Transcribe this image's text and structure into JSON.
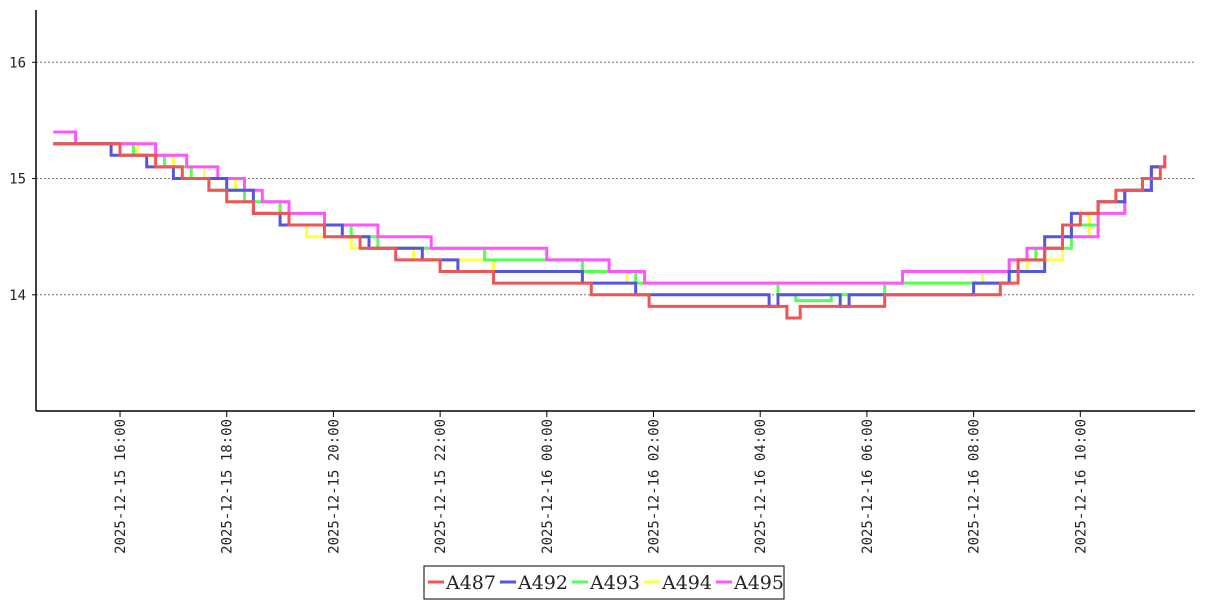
{
  "chart_data": {
    "type": "line",
    "title": "",
    "xlabel": "",
    "ylabel": "",
    "ylim": [
      13,
      16.45
    ],
    "xlim": [
      "2025-12-15 14:30",
      "2025-12-16 12:00"
    ],
    "yticks": [
      14,
      15,
      16
    ],
    "xticks": [
      "2025-12-15 16:00",
      "2025-12-15 18:00",
      "2025-12-15 20:00",
      "2025-12-15 22:00",
      "2025-12-16 00:00",
      "2025-12-16 02:00",
      "2025-12-16 04:00",
      "2025-12-16 06:00",
      "2025-12-16 08:00",
      "2025-12-16 10:00"
    ],
    "grid": "horizontal dotted",
    "legend": "bottom-center",
    "series": [
      {
        "name": "A494",
        "color": "#ffff44",
        "points": [
          [
            "2025-12-15 14:45",
            15.3
          ],
          [
            "2025-12-15 16:20",
            15.2
          ],
          [
            "2025-12-15 17:00",
            15.1
          ],
          [
            "2025-12-15 17:35",
            15.0
          ],
          [
            "2025-12-15 18:10",
            14.9
          ],
          [
            "2025-12-15 18:30",
            14.8
          ],
          [
            "2025-12-15 19:00",
            14.6
          ],
          [
            "2025-12-15 19:30",
            14.5
          ],
          [
            "2025-12-15 20:20",
            14.4
          ],
          [
            "2025-12-15 20:45",
            14.4
          ],
          [
            "2025-12-15 21:30",
            14.3
          ],
          [
            "2025-12-15 23:00",
            14.2
          ],
          [
            "2025-12-16 00:40",
            14.2
          ],
          [
            "2025-12-16 01:30",
            14.1
          ],
          [
            "2025-12-16 03:00",
            14.1
          ],
          [
            "2025-12-16 05:00",
            14.1
          ],
          [
            "2025-12-16 06:30",
            14.1
          ],
          [
            "2025-12-16 08:10",
            14.2
          ],
          [
            "2025-12-16 09:00",
            14.3
          ],
          [
            "2025-12-16 09:40",
            14.5
          ],
          [
            "2025-12-16 10:10",
            14.7
          ],
          [
            "2025-12-16 10:50",
            14.9
          ],
          [
            "2025-12-16 11:20",
            15.1
          ],
          [
            "2025-12-16 11:35",
            15.15
          ]
        ]
      },
      {
        "name": "A493",
        "color": "#55ff55",
        "points": [
          [
            "2025-12-15 14:45",
            15.3
          ],
          [
            "2025-12-15 16:15",
            15.2
          ],
          [
            "2025-12-15 16:50",
            15.1
          ],
          [
            "2025-12-15 17:20",
            15.0
          ],
          [
            "2025-12-15 17:40",
            14.9
          ],
          [
            "2025-12-15 18:20",
            14.8
          ],
          [
            "2025-12-15 19:00",
            14.7
          ],
          [
            "2025-12-15 19:50",
            14.6
          ],
          [
            "2025-12-15 20:20",
            14.5
          ],
          [
            "2025-12-15 20:50",
            14.4
          ],
          [
            "2025-12-15 21:40",
            14.4
          ],
          [
            "2025-12-15 22:50",
            14.3
          ],
          [
            "2025-12-16 00:40",
            14.2
          ],
          [
            "2025-12-16 01:40",
            14.1
          ],
          [
            "2025-12-16 04:20",
            14.0
          ],
          [
            "2025-12-16 04:40",
            13.95
          ],
          [
            "2025-12-16 05:20",
            14.0
          ],
          [
            "2025-12-16 06:20",
            14.1
          ],
          [
            "2025-12-16 08:00",
            14.1
          ],
          [
            "2025-12-16 08:40",
            14.3
          ],
          [
            "2025-12-16 09:10",
            14.4
          ],
          [
            "2025-12-16 09:50",
            14.6
          ],
          [
            "2025-12-16 10:20",
            14.8
          ],
          [
            "2025-12-16 10:50",
            14.9
          ],
          [
            "2025-12-16 11:20",
            15.1
          ],
          [
            "2025-12-16 11:35",
            15.1
          ]
        ]
      },
      {
        "name": "A495",
        "color": "#ff55ff",
        "points": [
          [
            "2025-12-15 14:45",
            15.4
          ],
          [
            "2025-12-15 15:10",
            15.3
          ],
          [
            "2025-12-15 16:10",
            15.3
          ],
          [
            "2025-12-15 16:40",
            15.2
          ],
          [
            "2025-12-15 17:15",
            15.1
          ],
          [
            "2025-12-15 17:50",
            15.0
          ],
          [
            "2025-12-15 18:20",
            14.9
          ],
          [
            "2025-12-15 18:40",
            14.8
          ],
          [
            "2025-12-15 19:10",
            14.7
          ],
          [
            "2025-12-15 19:50",
            14.6
          ],
          [
            "2025-12-15 20:50",
            14.5
          ],
          [
            "2025-12-15 21:50",
            14.4
          ],
          [
            "2025-12-16 00:00",
            14.3
          ],
          [
            "2025-12-16 01:10",
            14.2
          ],
          [
            "2025-12-16 01:50",
            14.1
          ],
          [
            "2025-12-16 03:00",
            14.1
          ],
          [
            "2025-12-16 05:00",
            14.1
          ],
          [
            "2025-12-16 06:20",
            14.1
          ],
          [
            "2025-12-16 06:40",
            14.2
          ],
          [
            "2025-12-16 07:40",
            14.2
          ],
          [
            "2025-12-16 08:40",
            14.3
          ],
          [
            "2025-12-16 09:00",
            14.4
          ],
          [
            "2025-12-16 09:40",
            14.5
          ],
          [
            "2025-12-16 10:20",
            14.7
          ],
          [
            "2025-12-16 10:50",
            14.9
          ],
          [
            "2025-12-16 11:20",
            15.1
          ],
          [
            "2025-12-16 11:35",
            15.2
          ]
        ]
      },
      {
        "name": "A492",
        "color": "#5555dd",
        "points": [
          [
            "2025-12-15 14:45",
            15.3
          ],
          [
            "2025-12-15 15:50",
            15.2
          ],
          [
            "2025-12-15 16:30",
            15.1
          ],
          [
            "2025-12-15 17:00",
            15.0
          ],
          [
            "2025-12-15 18:00",
            14.9
          ],
          [
            "2025-12-15 18:30",
            14.7
          ],
          [
            "2025-12-15 19:00",
            14.6
          ],
          [
            "2025-12-15 20:10",
            14.5
          ],
          [
            "2025-12-15 20:40",
            14.4
          ],
          [
            "2025-12-15 21:40",
            14.3
          ],
          [
            "2025-12-15 22:20",
            14.2
          ],
          [
            "2025-12-16 00:40",
            14.1
          ],
          [
            "2025-12-16 01:40",
            14.0
          ],
          [
            "2025-12-16 04:00",
            14.0
          ],
          [
            "2025-12-16 04:10",
            13.9
          ],
          [
            "2025-12-16 04:20",
            14.0
          ],
          [
            "2025-12-16 05:20",
            14.0
          ],
          [
            "2025-12-16 05:30",
            13.9
          ],
          [
            "2025-12-16 05:40",
            14.0
          ],
          [
            "2025-12-16 08:00",
            14.1
          ],
          [
            "2025-12-16 08:40",
            14.2
          ],
          [
            "2025-12-16 09:20",
            14.5
          ],
          [
            "2025-12-16 09:50",
            14.7
          ],
          [
            "2025-12-16 10:20",
            14.8
          ],
          [
            "2025-12-16 10:50",
            14.9
          ],
          [
            "2025-12-16 11:20",
            15.1
          ],
          [
            "2025-12-16 11:35",
            15.1
          ]
        ]
      },
      {
        "name": "A487",
        "color": "#ee5555",
        "points": [
          [
            "2025-12-15 14:45",
            15.3
          ],
          [
            "2025-12-15 16:00",
            15.2
          ],
          [
            "2025-12-15 16:40",
            15.1
          ],
          [
            "2025-12-15 17:10",
            15.0
          ],
          [
            "2025-12-15 17:40",
            14.9
          ],
          [
            "2025-12-15 18:00",
            14.8
          ],
          [
            "2025-12-15 18:30",
            14.7
          ],
          [
            "2025-12-15 19:10",
            14.6
          ],
          [
            "2025-12-15 19:50",
            14.5
          ],
          [
            "2025-12-15 20:30",
            14.4
          ],
          [
            "2025-12-15 21:10",
            14.3
          ],
          [
            "2025-12-15 22:00",
            14.2
          ],
          [
            "2025-12-15 23:00",
            14.1
          ],
          [
            "2025-12-16 00:50",
            14.0
          ],
          [
            "2025-12-16 01:55",
            13.9
          ],
          [
            "2025-12-16 04:20",
            13.9
          ],
          [
            "2025-12-16 04:30",
            13.8
          ],
          [
            "2025-12-16 04:45",
            13.9
          ],
          [
            "2025-12-16 06:10",
            13.9
          ],
          [
            "2025-12-16 06:20",
            14.0
          ],
          [
            "2025-12-16 08:30",
            14.1
          ],
          [
            "2025-12-16 08:50",
            14.3
          ],
          [
            "2025-12-16 09:20",
            14.4
          ],
          [
            "2025-12-16 09:40",
            14.6
          ],
          [
            "2025-12-16 10:00",
            14.7
          ],
          [
            "2025-12-16 10:20",
            14.8
          ],
          [
            "2025-12-16 10:40",
            14.9
          ],
          [
            "2025-12-16 11:10",
            15.0
          ],
          [
            "2025-12-16 11:30",
            15.1
          ],
          [
            "2025-12-16 11:35",
            15.2
          ]
        ]
      }
    ],
    "legend_order": [
      "A487",
      "A492",
      "A493",
      "A494",
      "A495"
    ]
  }
}
